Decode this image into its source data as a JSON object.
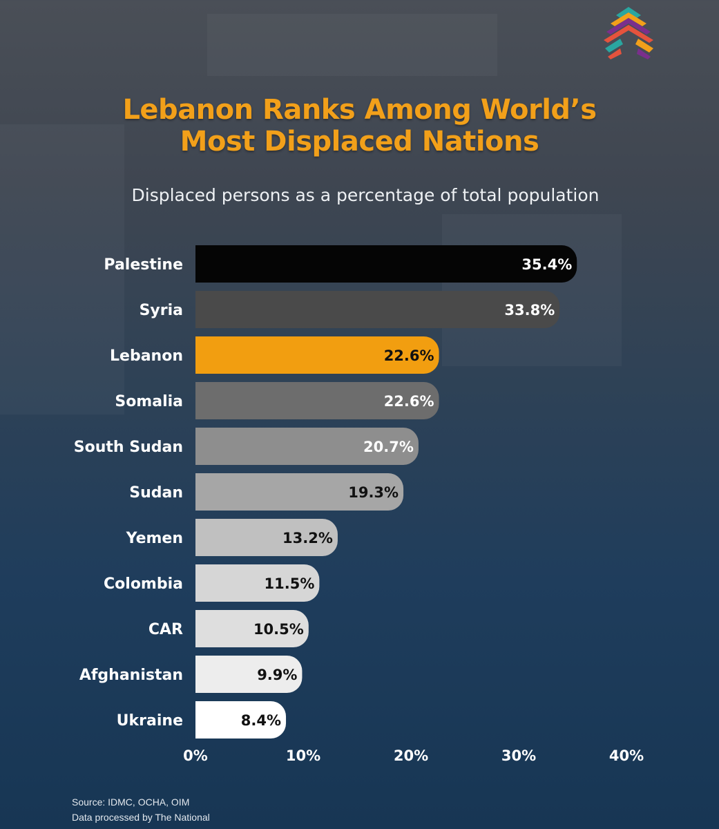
{
  "title_line1": "Lebanon Ranks Among World’s",
  "title_line2": "Most Displaced Nations",
  "subtitle": "Displaced persons as a percentage of total population",
  "source_line1": "Source: IDMC, OCHA, OIM",
  "source_line2": "Data processed by The National",
  "colors": {
    "title": "#f2a01a",
    "highlight": "#f29e10"
  },
  "chart_data": {
    "type": "bar",
    "orientation": "horizontal",
    "title": "Lebanon Ranks Among World’s Most Displaced Nations",
    "subtitle": "Displaced persons as a percentage of total population",
    "categories": [
      "Palestine",
      "Syria",
      "Lebanon",
      "Somalia",
      "South Sudan",
      "Sudan",
      "Yemen",
      "Colombia",
      "CAR",
      "Afghanistan",
      "Ukraine"
    ],
    "values": [
      35.4,
      33.8,
      22.6,
      22.6,
      20.7,
      19.3,
      13.2,
      11.5,
      10.5,
      9.9,
      8.4
    ],
    "labels": [
      "35.4%",
      "33.8%",
      "22.6%",
      "22.6%",
      "20.7%",
      "19.3%",
      "13.2%",
      "11.5%",
      "10.5%",
      "9.9%",
      "8.4%"
    ],
    "bar_colors": [
      "#050505",
      "#4a4a4a",
      "#f29e10",
      "#6d6d6d",
      "#8e8e8e",
      "#a6a6a6",
      "#c0c0c0",
      "#d6d6d6",
      "#dedede",
      "#ededed",
      "#ffffff"
    ],
    "label_colors": [
      "#ffffff",
      "#ffffff",
      "#111111",
      "#ffffff",
      "#ffffff",
      "#111111",
      "#111111",
      "#111111",
      "#111111",
      "#111111",
      "#111111"
    ],
    "xticks": [
      "0%",
      "10%",
      "20%",
      "30%",
      "40%"
    ],
    "xlim": [
      0,
      40
    ],
    "xlabel": "",
    "ylabel": "",
    "grid": false,
    "legend": "none"
  }
}
